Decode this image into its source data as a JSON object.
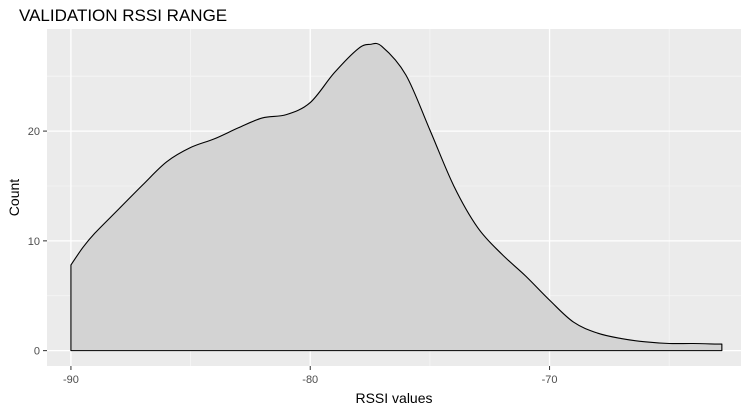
{
  "chart_data": {
    "type": "area",
    "title": "VALIDATION RSSI RANGE",
    "xlabel": "RSSI values",
    "ylabel": "Count",
    "xlim": [
      -91,
      -62
    ],
    "ylim": [
      -1.4,
      29.3
    ],
    "x_ticks": [
      -90,
      -80,
      -70
    ],
    "y_ticks": [
      0,
      10,
      20
    ],
    "grid": true,
    "legend": "none",
    "colors": {
      "panel_background": "#ebebeb",
      "grid_major": "#ffffff",
      "grid_minor": "#f5f5f5",
      "fill": "#d3d3d3",
      "outline": "#000000"
    },
    "series": [
      {
        "x": [
          -90,
          -90,
          -89.5,
          -89,
          -88,
          -87,
          -86,
          -85,
          -84,
          -83,
          -82,
          -81,
          -80,
          -79,
          -78,
          -77.5,
          -77,
          -76,
          -75,
          -74,
          -73,
          -72,
          -71,
          -70,
          -69,
          -68,
          -67,
          -66,
          -65,
          -64,
          -63,
          -62.8,
          -62.8
        ],
        "values": [
          0,
          7.8,
          9.4,
          10.7,
          12.9,
          15.1,
          17.2,
          18.5,
          19.3,
          20.3,
          21.2,
          21.5,
          22.6,
          25.3,
          27.5,
          27.9,
          27.7,
          25.1,
          20.1,
          15.0,
          11.2,
          8.8,
          6.8,
          4.6,
          2.6,
          1.6,
          1.1,
          0.8,
          0.65,
          0.65,
          0.6,
          0.6,
          0
        ]
      }
    ]
  }
}
